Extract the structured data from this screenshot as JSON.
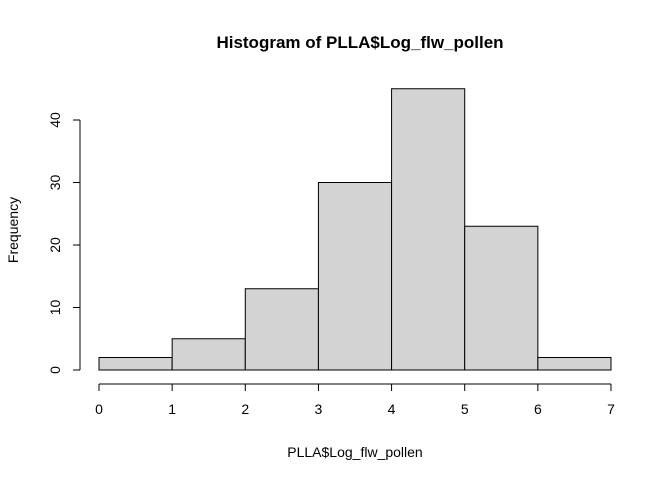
{
  "chart_data": {
    "type": "bar",
    "title": "Histogram of PLLA$Log_flw_pollen",
    "xlabel": "PLLA$Log_flw_pollen",
    "ylabel": "Frequency",
    "bins": [
      {
        "start": 0,
        "end": 1,
        "count": 2
      },
      {
        "start": 1,
        "end": 2,
        "count": 5
      },
      {
        "start": 2,
        "end": 3,
        "count": 13
      },
      {
        "start": 3,
        "end": 4,
        "count": 30
      },
      {
        "start": 4,
        "end": 5,
        "count": 45
      },
      {
        "start": 5,
        "end": 6,
        "count": 23
      },
      {
        "start": 6,
        "end": 7,
        "count": 2
      }
    ],
    "xlim": [
      0,
      7
    ],
    "ylim": [
      0,
      45
    ],
    "xticks": [
      "0",
      "1",
      "2",
      "3",
      "4",
      "5",
      "6",
      "7"
    ],
    "yticks": [
      "0",
      "10",
      "20",
      "30",
      "40"
    ],
    "grid": false,
    "colors": {
      "bar_fill": "#d3d3d3",
      "bar_stroke": "#000000"
    }
  }
}
